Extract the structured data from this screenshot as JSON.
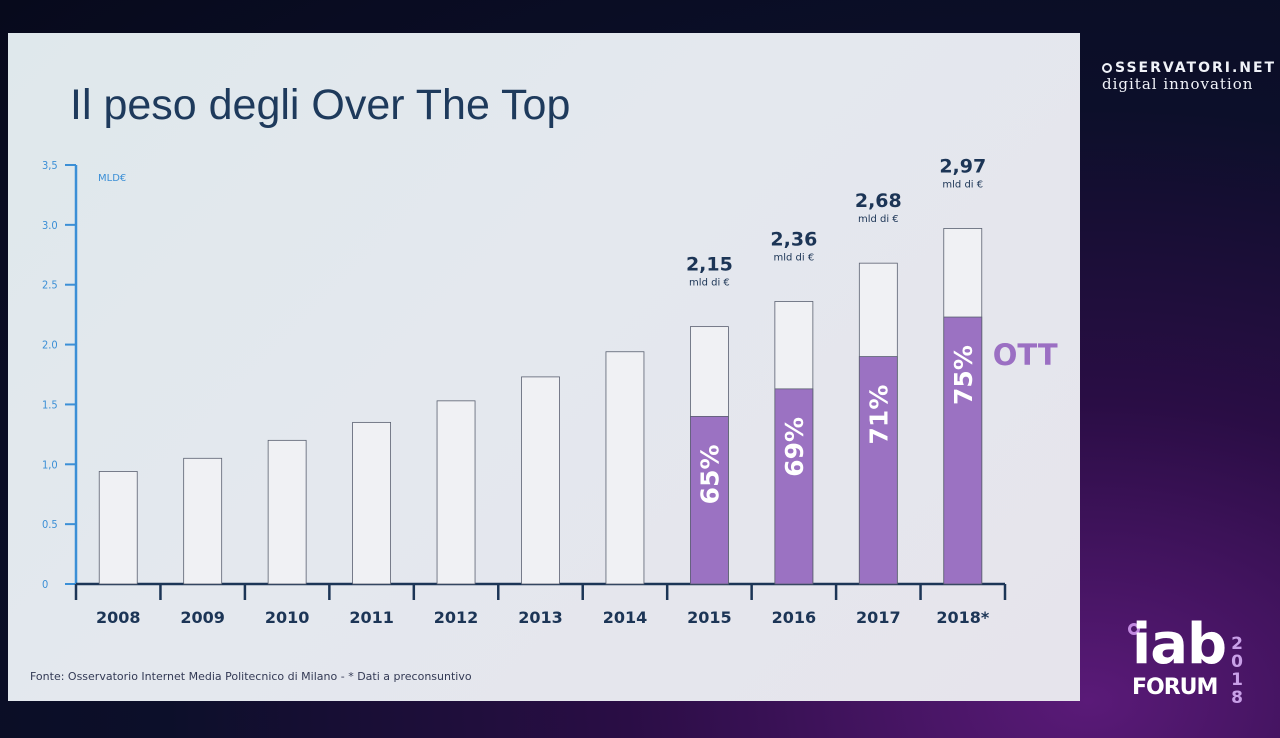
{
  "slide": {
    "title": "Il peso degli Over The Top",
    "source": "Fonte: Osservatorio Internet Media Politecnico di Milano - * Dati a preconsuntivo"
  },
  "branding": {
    "osservatori_top": "SSERVATORI.NET",
    "osservatori_bottom": "digital innovation",
    "iab_main": "iab",
    "iab_forum": "FORUM",
    "iab_year": [
      "2",
      "0",
      "1",
      "8"
    ]
  },
  "colors": {
    "total_bar": "#f0f1f4",
    "ott_bar": "#9b72c2",
    "axis": "#1c3556",
    "y_axis": "#3b8fd6"
  },
  "chart_data": {
    "type": "bar",
    "title": "Il peso degli Over The Top",
    "ylabel": "MLD€",
    "ylim": [
      0,
      3.5
    ],
    "y_ticks": [
      "0",
      "0.5",
      "1,0",
      "1.5",
      "2.0",
      "2.5",
      "3.0",
      "3,5"
    ],
    "y_tick_values": [
      0,
      0.5,
      1.0,
      1.5,
      2.0,
      2.5,
      3.0,
      3.5
    ],
    "categories": [
      "2008",
      "2009",
      "2010",
      "2011",
      "2012",
      "2013",
      "2014",
      "2015",
      "2016",
      "2017",
      "2018*"
    ],
    "series": [
      {
        "name": "",
        "values": [
          0.94,
          1.05,
          1.2,
          1.35,
          1.53,
          1.73,
          1.94,
          2.15,
          2.36,
          2.68,
          2.97
        ]
      },
      {
        "name": "OTT",
        "values": [
          null,
          null,
          null,
          null,
          null,
          null,
          null,
          1.4,
          1.63,
          1.9,
          2.23
        ]
      }
    ],
    "total_labels": [
      {
        "index": 7,
        "value": "2,15",
        "unit": "mld di €"
      },
      {
        "index": 8,
        "value": "2,36",
        "unit": "mld di €"
      },
      {
        "index": 9,
        "value": "2,68",
        "unit": "mld di €"
      },
      {
        "index": 10,
        "value": "2,97",
        "unit": "mld di €"
      }
    ],
    "share_labels": [
      {
        "index": 7,
        "value": "65%"
      },
      {
        "index": 8,
        "value": "69%"
      },
      {
        "index": 9,
        "value": "71%"
      },
      {
        "index": 10,
        "value": "75%"
      }
    ],
    "series_label": "OTT",
    "grid": false
  }
}
